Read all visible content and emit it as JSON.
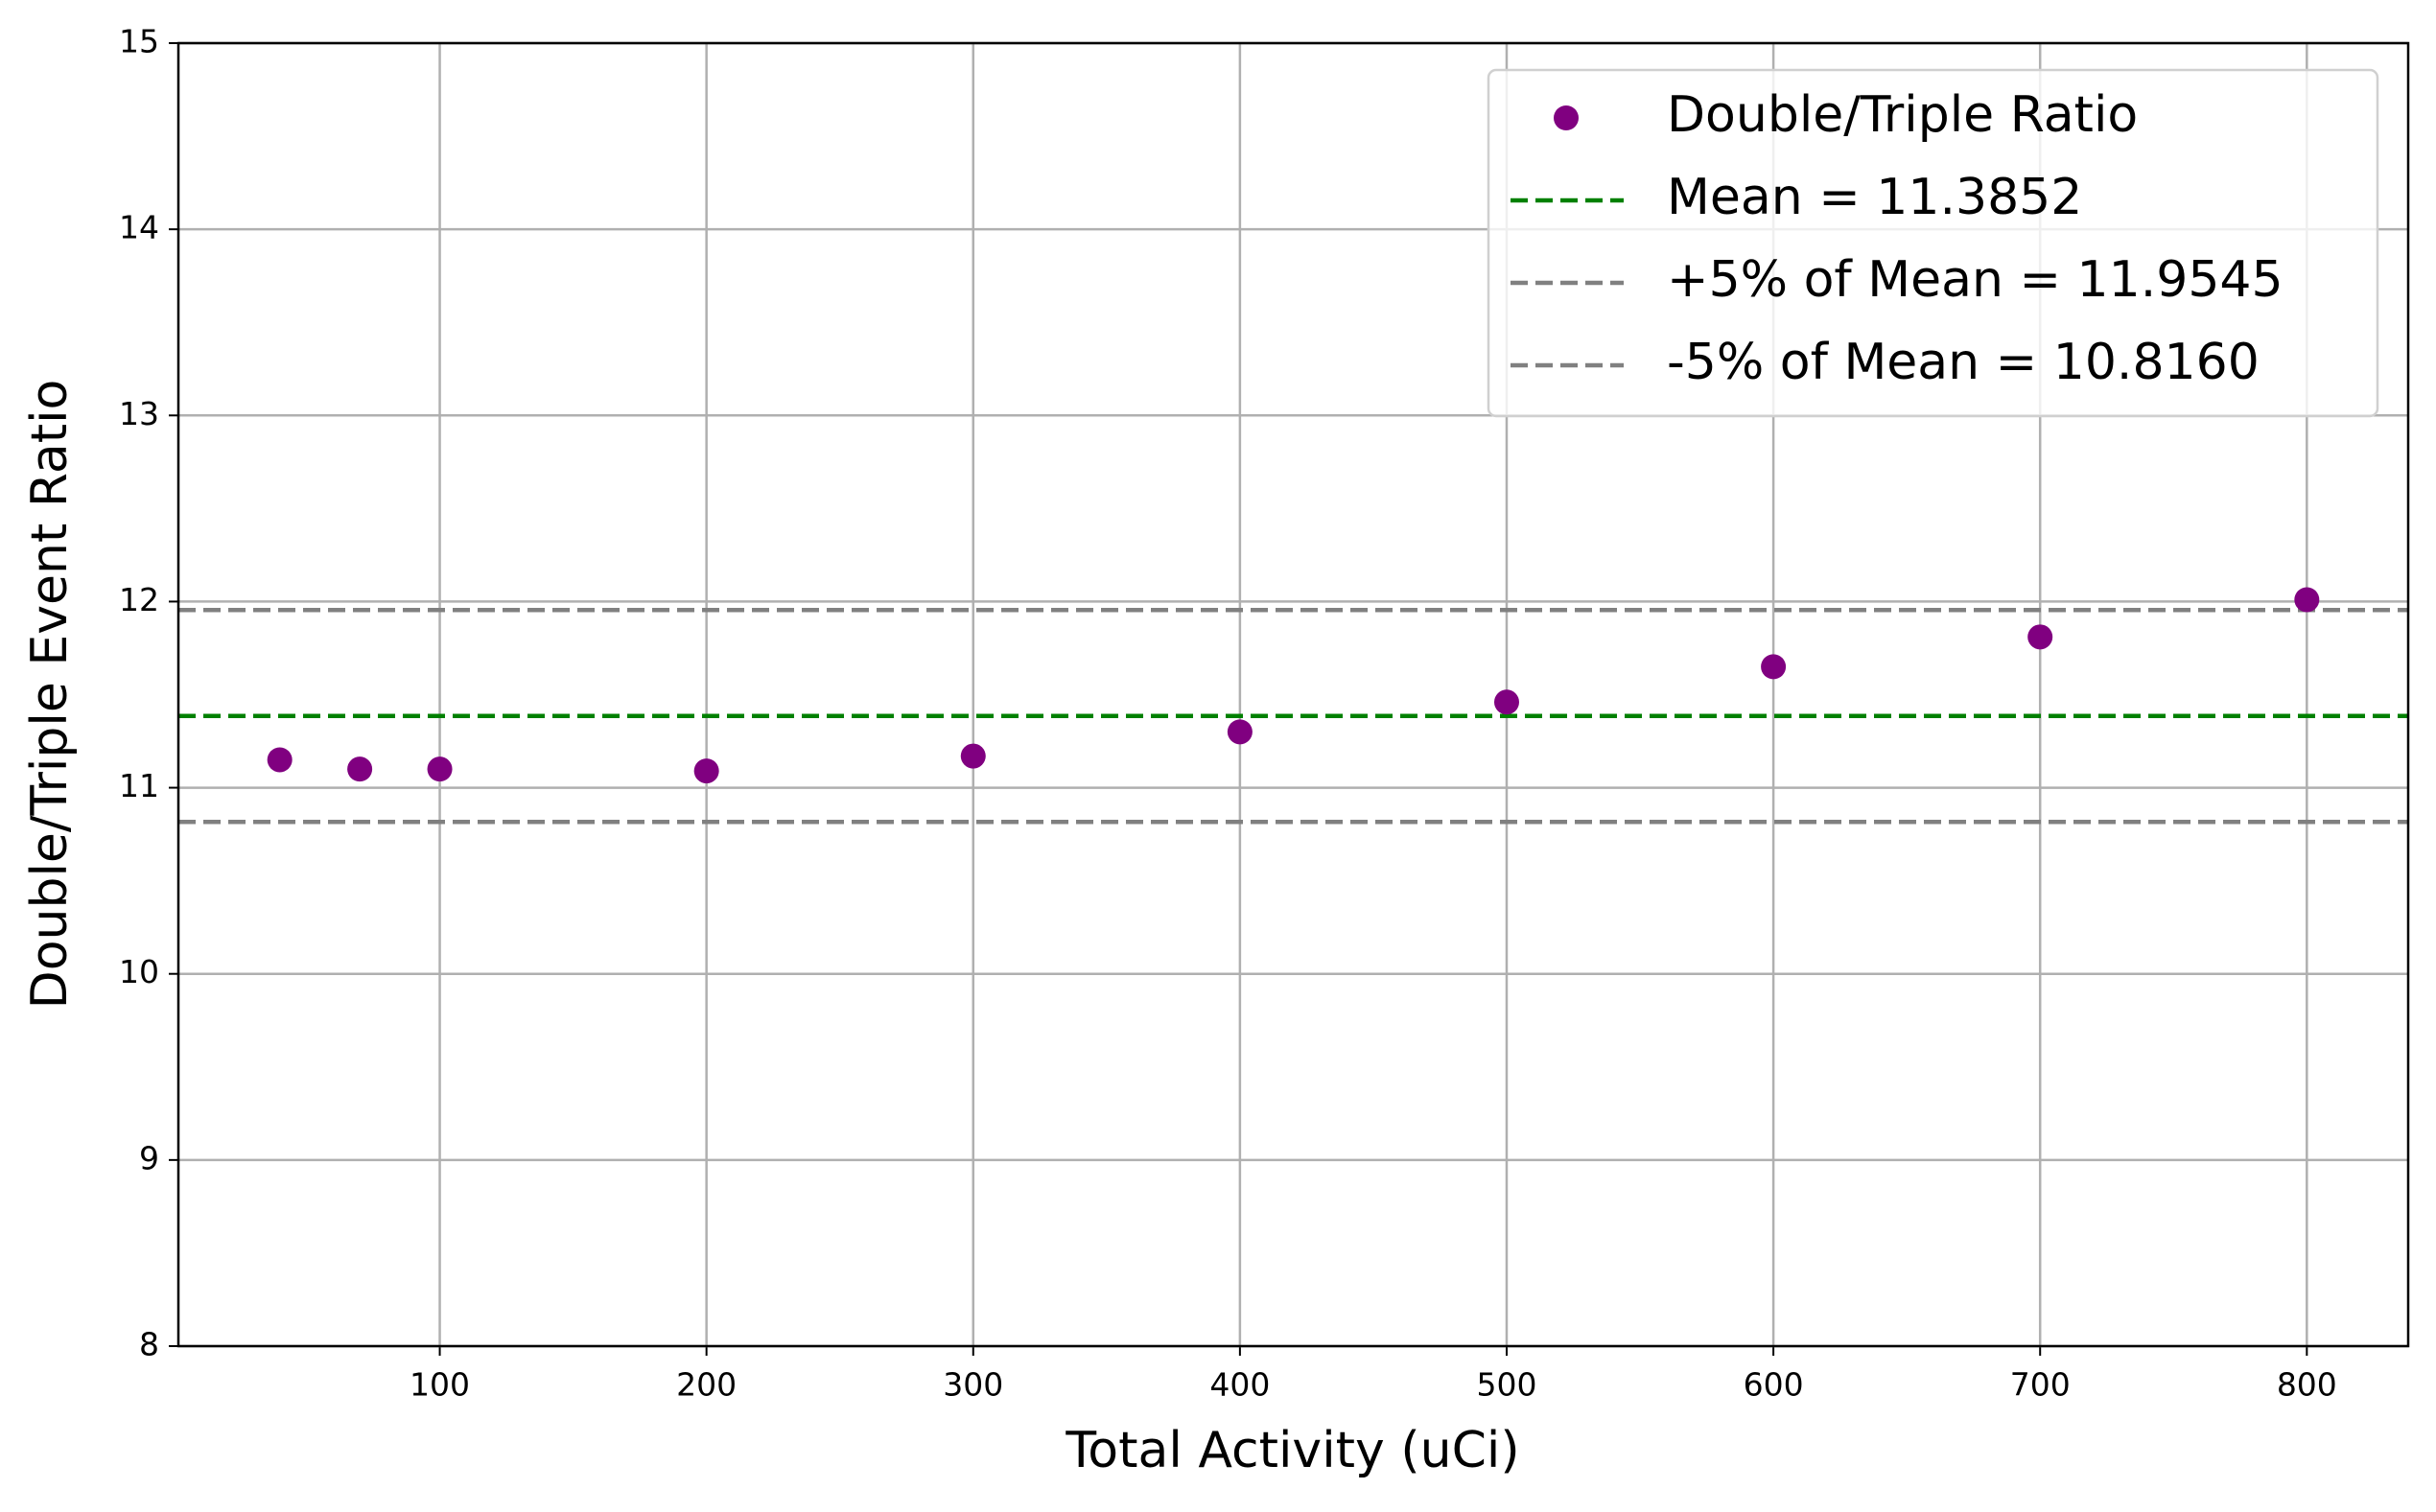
{
  "chart_data": {
    "type": "scatter",
    "xlabel": "Total Activity (uCi)",
    "ylabel": "Double/Triple Event Ratio",
    "x": [
      40,
      70,
      100,
      200,
      300,
      400,
      500,
      600,
      700,
      800
    ],
    "series": [
      {
        "name": "Double/Triple Ratio",
        "color": "#800080",
        "values": [
          11.15,
          11.1,
          11.1,
          11.09,
          11.17,
          11.3,
          11.46,
          11.65,
          11.81,
          12.01
        ]
      }
    ],
    "lines": [
      {
        "name": "Mean = 11.3852",
        "value": 11.3852,
        "color": "#008000"
      },
      {
        "name": "+5% of Mean = 11.9545",
        "value": 11.9545,
        "color": "#808080"
      },
      {
        "name": "-5% of Mean = 10.8160",
        "value": 10.816,
        "color": "#808080"
      }
    ],
    "xlim": [
      2,
      838
    ],
    "ylim": [
      8,
      15
    ],
    "xticks": [
      100,
      200,
      300,
      400,
      500,
      600,
      700,
      800
    ],
    "yticks": [
      8,
      9,
      10,
      11,
      12,
      13,
      14,
      15
    ],
    "grid": true,
    "legend": "upper right"
  }
}
